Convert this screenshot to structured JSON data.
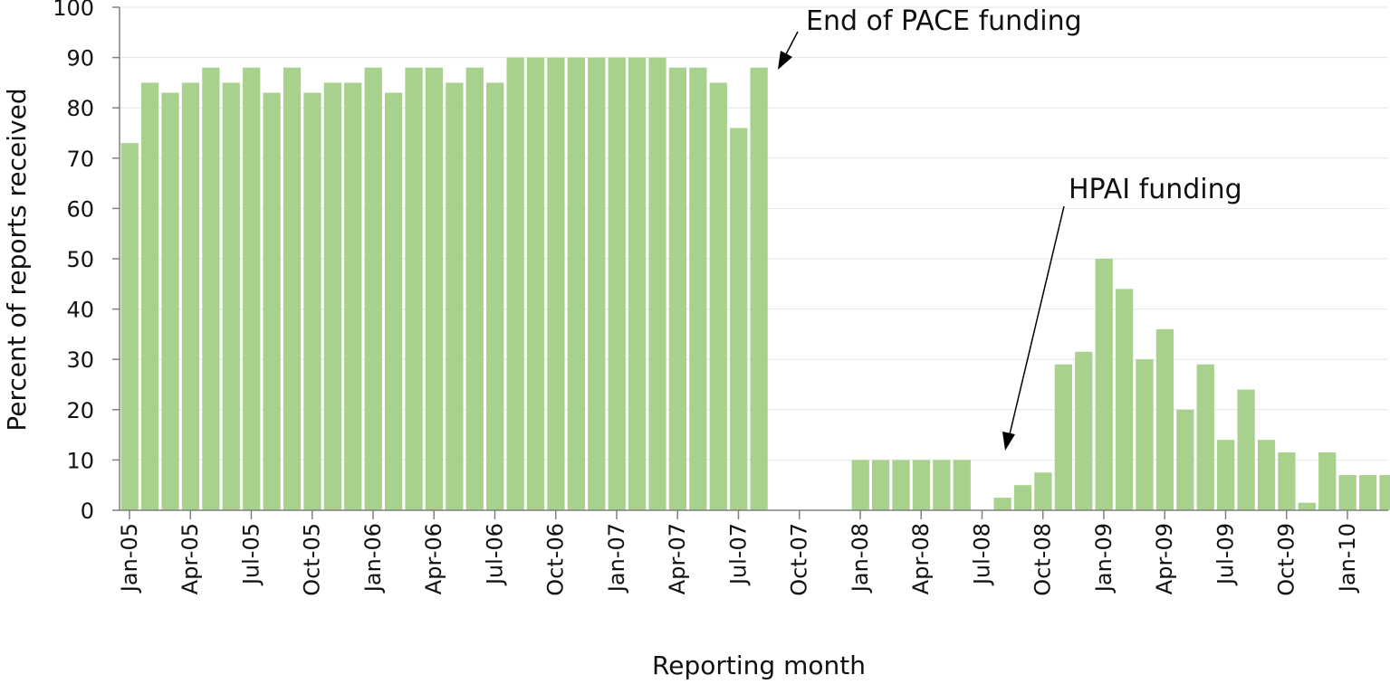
{
  "chart_data": {
    "type": "bar",
    "title": "",
    "xlabel": "Reporting month",
    "ylabel": "Percent of reports received",
    "ylim": [
      0,
      100
    ],
    "yticks": [
      "0",
      "10",
      "20",
      "30",
      "40",
      "50",
      "60",
      "70",
      "80",
      "90",
      "100"
    ],
    "grid": "horizontal",
    "bar_color": "#a9d18e",
    "categories": [
      "Jan-05",
      "Feb-05",
      "Mar-05",
      "Apr-05",
      "May-05",
      "Jun-05",
      "Jul-05",
      "Aug-05",
      "Sep-05",
      "Oct-05",
      "Nov-05",
      "Dec-05",
      "Jan-06",
      "Feb-06",
      "Mar-06",
      "Apr-06",
      "May-06",
      "Jun-06",
      "Jul-06",
      "Aug-06",
      "Sep-06",
      "Oct-06",
      "Nov-06",
      "Dec-06",
      "Jan-07",
      "Feb-07",
      "Mar-07",
      "Apr-07",
      "May-07",
      "Jun-07",
      "Jul-07",
      "Aug-07",
      "Sep-07",
      "Oct-07",
      "Nov-07",
      "Dec-07",
      "Jan-08",
      "Feb-08",
      "Mar-08",
      "Apr-08",
      "May-08",
      "Jun-08",
      "Jul-08",
      "Aug-08",
      "Sep-08",
      "Oct-08",
      "Nov-08",
      "Dec-08",
      "Jan-09",
      "Feb-09",
      "Mar-09",
      "Apr-09",
      "May-09",
      "Jun-09",
      "Jul-09",
      "Aug-09",
      "Sep-09",
      "Oct-09",
      "Nov-09",
      "Dec-09",
      "Jan-10",
      "Feb-10",
      "Mar-10"
    ],
    "tick_labels": [
      "Jan-05",
      "Apr-05",
      "Jul-05",
      "Oct-05",
      "Jan-06",
      "Apr-06",
      "Jul-06",
      "Oct-06",
      "Jan-07",
      "Apr-07",
      "Jul-07",
      "Oct-07",
      "Jan-08",
      "Apr-08",
      "Jul-08",
      "Oct-08",
      "Jan-09",
      "Apr-09",
      "Jul-09",
      "Oct-09",
      "Jan-10"
    ],
    "values": [
      73,
      85,
      83,
      85,
      88,
      85,
      88,
      83,
      88,
      83,
      85,
      85,
      88,
      83,
      88,
      88,
      85,
      88,
      85,
      90,
      90,
      90,
      90,
      90,
      90,
      90,
      90,
      88,
      88,
      85,
      76,
      88,
      0,
      0,
      0,
      0,
      10,
      10,
      10,
      10,
      10,
      10,
      0,
      2.5,
      5,
      7.5,
      29,
      31.5,
      50,
      44,
      30,
      36,
      20,
      29,
      14,
      24,
      14,
      11.5,
      1.5,
      11.5,
      7,
      7,
      7
    ],
    "annotations": [
      {
        "text": "End of PACE funding",
        "target": "Sep-07"
      },
      {
        "text": "HPAI funding",
        "target": "Aug-08"
      }
    ]
  }
}
